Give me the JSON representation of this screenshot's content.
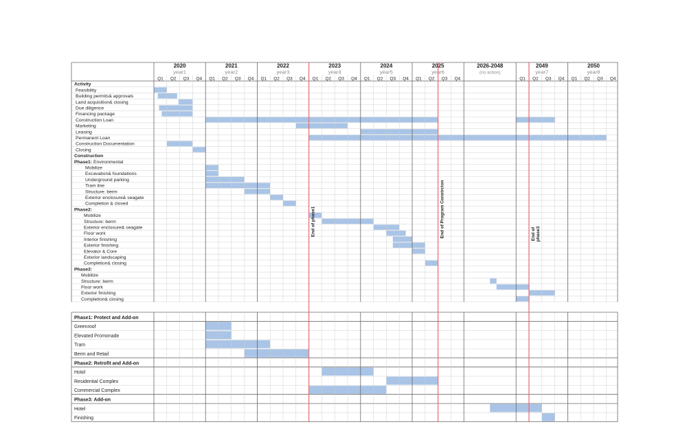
{
  "colors": {
    "bar": "#a9c4e6",
    "marker": "#e8727a",
    "grid": "#cfcfcf",
    "major": "#666666",
    "text": "#222222",
    "subtext": "#8a8a8a"
  },
  "chart_data": {
    "type": "gantt",
    "time_unit": "quarter",
    "periods": [
      {
        "label": "2020",
        "sub": "year1",
        "quarters": [
          "Q1",
          "Q2",
          "Q3",
          "Q4"
        ]
      },
      {
        "label": "2021",
        "sub": "year2",
        "quarters": [
          "Q1",
          "Q2",
          "Q3",
          "Q4"
        ]
      },
      {
        "label": "2022",
        "sub": "year3",
        "quarters": [
          "Q1",
          "Q2",
          "Q3",
          "Q4"
        ]
      },
      {
        "label": "2023",
        "sub": "year4",
        "quarters": [
          "Q1",
          "Q2",
          "Q3",
          "Q4"
        ]
      },
      {
        "label": "2024",
        "sub": "year5",
        "quarters": [
          "Q1",
          "Q2",
          "Q3",
          "Q4"
        ]
      },
      {
        "label": "2025",
        "sub": "year6",
        "quarters": [
          "Q1",
          "Q2",
          "Q3",
          "Q4"
        ]
      },
      {
        "label": "2026-2048",
        "sub": "(no action)",
        "quarters": []
      },
      {
        "label": "2049",
        "sub": "year7",
        "quarters": [
          "Q1",
          "Q2",
          "Q3",
          "Q4"
        ]
      },
      {
        "label": "2050",
        "sub": "year8",
        "quarters": [
          "Q1",
          "Q2",
          "Q3",
          "Q4"
        ]
      }
    ],
    "milestones": [
      {
        "label": "End of phase1",
        "at": 12
      },
      {
        "label": "End of Program Constrcion",
        "at": 22
      },
      {
        "label": "End of phase3",
        "at": 29
      }
    ],
    "activities": [
      {
        "label": "Activity",
        "bold": true
      },
      {
        "label": "Feasibility",
        "bars": [
          [
            0,
            1
          ]
        ]
      },
      {
        "label": "Building permits& approvals",
        "bars": [
          [
            0.3,
            1.8
          ]
        ]
      },
      {
        "label": "Land acquisition& closing",
        "bars": [
          [
            1.9,
            3
          ]
        ]
      },
      {
        "label": "Due diligence",
        "bars": [
          [
            0.4,
            3
          ]
        ]
      },
      {
        "label": "Financing package",
        "bars": [
          [
            0.6,
            3
          ]
        ]
      },
      {
        "label": "Construction Loan",
        "bars": [
          [
            4,
            22
          ],
          [
            28,
            31
          ]
        ]
      },
      {
        "label": "Marketing",
        "bars": [
          [
            11,
            15
          ]
        ]
      },
      {
        "label": "Leasing",
        "bars": [
          [
            16,
            22
          ]
        ]
      },
      {
        "label": "Permanent Loan",
        "bars": [
          [
            12,
            35
          ]
        ]
      },
      {
        "label": "Construction Documentation",
        "bars": [
          [
            1,
            3
          ]
        ]
      },
      {
        "label": "Closing",
        "bars": [
          [
            3,
            4
          ]
        ]
      },
      {
        "label": "Construction",
        "bold": true
      },
      {
        "label": "Phase1:",
        "rest": " Environmental",
        "bold": true
      },
      {
        "label": "Mobilize",
        "bars": [
          [
            4,
            5
          ]
        ]
      },
      {
        "label": "Excavation& foundations",
        "bars": [
          [
            4,
            5
          ]
        ]
      },
      {
        "label": "Underground parking",
        "bars": [
          [
            4,
            7
          ]
        ]
      },
      {
        "label": "Tram line",
        "bars": [
          [
            4,
            9
          ]
        ]
      },
      {
        "label": "Structure: berm",
        "bars": [
          [
            7,
            9
          ]
        ]
      },
      {
        "label": "Exterior enclosure& seagate",
        "bars": [
          [
            9,
            10
          ]
        ]
      },
      {
        "label": "Completion & closed",
        "bars": [
          [
            10,
            11
          ]
        ]
      },
      {
        "label": "Phase2:",
        "bold": true
      },
      {
        "label": "Mobilize",
        "bars": [
          [
            12,
            13
          ]
        ]
      },
      {
        "label": "Structure: berm",
        "bars": [
          [
            13,
            17
          ]
        ]
      },
      {
        "label": "Exterior enclosure& seagate",
        "bars": [
          [
            17,
            19
          ]
        ]
      },
      {
        "label": "Floor work",
        "bars": [
          [
            18,
            19.5
          ]
        ]
      },
      {
        "label": "Interior finishing",
        "bars": [
          [
            18.5,
            20
          ]
        ]
      },
      {
        "label": "Exterior finishing",
        "bars": [
          [
            18.5,
            21
          ]
        ]
      },
      {
        "label": "Elevator & Core",
        "bars": [
          [
            20,
            21
          ]
        ]
      },
      {
        "label": "Exterior landscaping"
      },
      {
        "label": "Completion& closing",
        "bars": [
          [
            21,
            22
          ]
        ]
      },
      {
        "label": "Phase3:",
        "bold": true
      },
      {
        "label": "Mobilize"
      },
      {
        "label": "Structure: berm",
        "bars": [
          [
            26,
            26.5
          ]
        ]
      },
      {
        "label": "Floor work",
        "bars": [
          [
            26.5,
            29
          ]
        ]
      },
      {
        "label": "Exterior finishing",
        "bars": [
          [
            29,
            31
          ]
        ]
      },
      {
        "label": "Completion& closing",
        "bars": [
          [
            28,
            29
          ]
        ]
      }
    ],
    "addons": [
      {
        "label": "Phase1: Protect and Add-on",
        "bold": true
      },
      {
        "label": "Greenroof",
        "bars": [
          [
            4,
            6
          ]
        ]
      },
      {
        "label": "Elevated Promonade",
        "bars": [
          [
            4,
            6
          ]
        ]
      },
      {
        "label": "Tram",
        "bars": [
          [
            4,
            9
          ]
        ]
      },
      {
        "label": "Berm and Retail",
        "bars": [
          [
            7,
            12
          ]
        ]
      },
      {
        "label": "Phase2: Retrofit and Add-on",
        "bold": true
      },
      {
        "label": "Hotel",
        "bars": [
          [
            13,
            17
          ]
        ]
      },
      {
        "label": "Residential Complex",
        "bars": [
          [
            18,
            22
          ]
        ]
      },
      {
        "label": "Commercial Complex",
        "bars": [
          [
            12,
            18
          ]
        ]
      },
      {
        "label": "Phase3: Add-on",
        "bold": true
      },
      {
        "label": "Hotel",
        "bars": [
          [
            26,
            30
          ]
        ]
      },
      {
        "label": "Finishing",
        "bars": [
          [
            30,
            31
          ]
        ]
      }
    ]
  }
}
